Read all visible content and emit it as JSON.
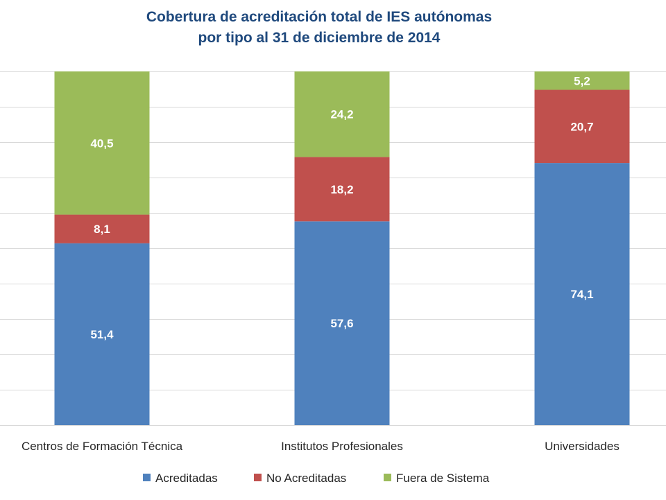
{
  "chart_data": {
    "type": "bar",
    "stacked": true,
    "title": [
      "Cobertura de acreditación total de IES autónomas",
      "por tipo al 31 de diciembre de 2014"
    ],
    "categories": [
      "Centros de Formación Técnica",
      "Institutos Profesionales",
      "Universidades"
    ],
    "series": [
      {
        "name": "Acreditadas",
        "color": "#4f81bd",
        "values": [
          51.4,
          57.6,
          74.1
        ],
        "labels": [
          "51,4",
          "57,6",
          "74,1"
        ]
      },
      {
        "name": "No Acreditadas",
        "color": "#c0504d",
        "values": [
          8.1,
          18.2,
          20.7
        ],
        "labels": [
          "8,1",
          "18,2",
          "20,7"
        ]
      },
      {
        "name": "Fuera de Sistema",
        "color": "#9bbb59",
        "values": [
          40.5,
          24.2,
          5.2
        ],
        "labels": [
          "40,5",
          "24,2",
          "5,2"
        ]
      }
    ],
    "ylim": [
      0,
      100
    ],
    "y_tick_step": 10,
    "grid": true,
    "legend_position": "bottom"
  }
}
